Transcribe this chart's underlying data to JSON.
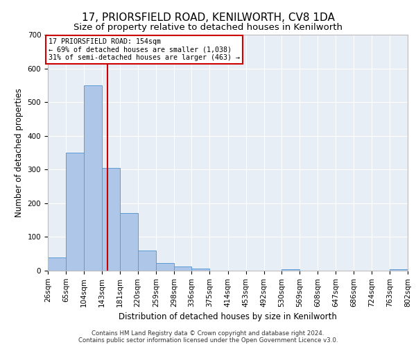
{
  "title": "17, PRIORSFIELD ROAD, KENILWORTH, CV8 1DA",
  "subtitle": "Size of property relative to detached houses in Kenilworth",
  "xlabel": "Distribution of detached houses by size in Kenilworth",
  "ylabel": "Number of detached properties",
  "footer1": "Contains HM Land Registry data © Crown copyright and database right 2024.",
  "footer2": "Contains public sector information licensed under the Open Government Licence v3.0.",
  "property_line": 154,
  "property_label": "17 PRIORSFIELD ROAD: 154sqm",
  "annotation_line1": "← 69% of detached houses are smaller (1,038)",
  "annotation_line2": "31% of semi-detached houses are larger (463) →",
  "bin_edges": [
    26,
    65,
    104,
    143,
    181,
    220,
    259,
    298,
    336,
    375,
    414,
    453,
    492,
    530,
    569,
    608,
    647,
    686,
    724,
    763,
    802
  ],
  "bar_heights": [
    40,
    350,
    550,
    305,
    170,
    60,
    22,
    12,
    7,
    0,
    0,
    0,
    0,
    5,
    0,
    0,
    0,
    0,
    0,
    5
  ],
  "bar_color": "#aec6e8",
  "bar_edge_color": "#5b9bd5",
  "red_line_color": "#cc0000",
  "annotation_box_color": "#cc0000",
  "bg_color": "#e8eef5",
  "ylim": [
    0,
    700
  ],
  "yticks": [
    0,
    100,
    200,
    300,
    400,
    500,
    600,
    700
  ],
  "grid_color": "#ffffff",
  "title_fontsize": 11,
  "subtitle_fontsize": 9.5,
  "axis_fontsize": 8.5,
  "tick_fontsize": 7.5,
  "footer_fontsize": 6.2
}
